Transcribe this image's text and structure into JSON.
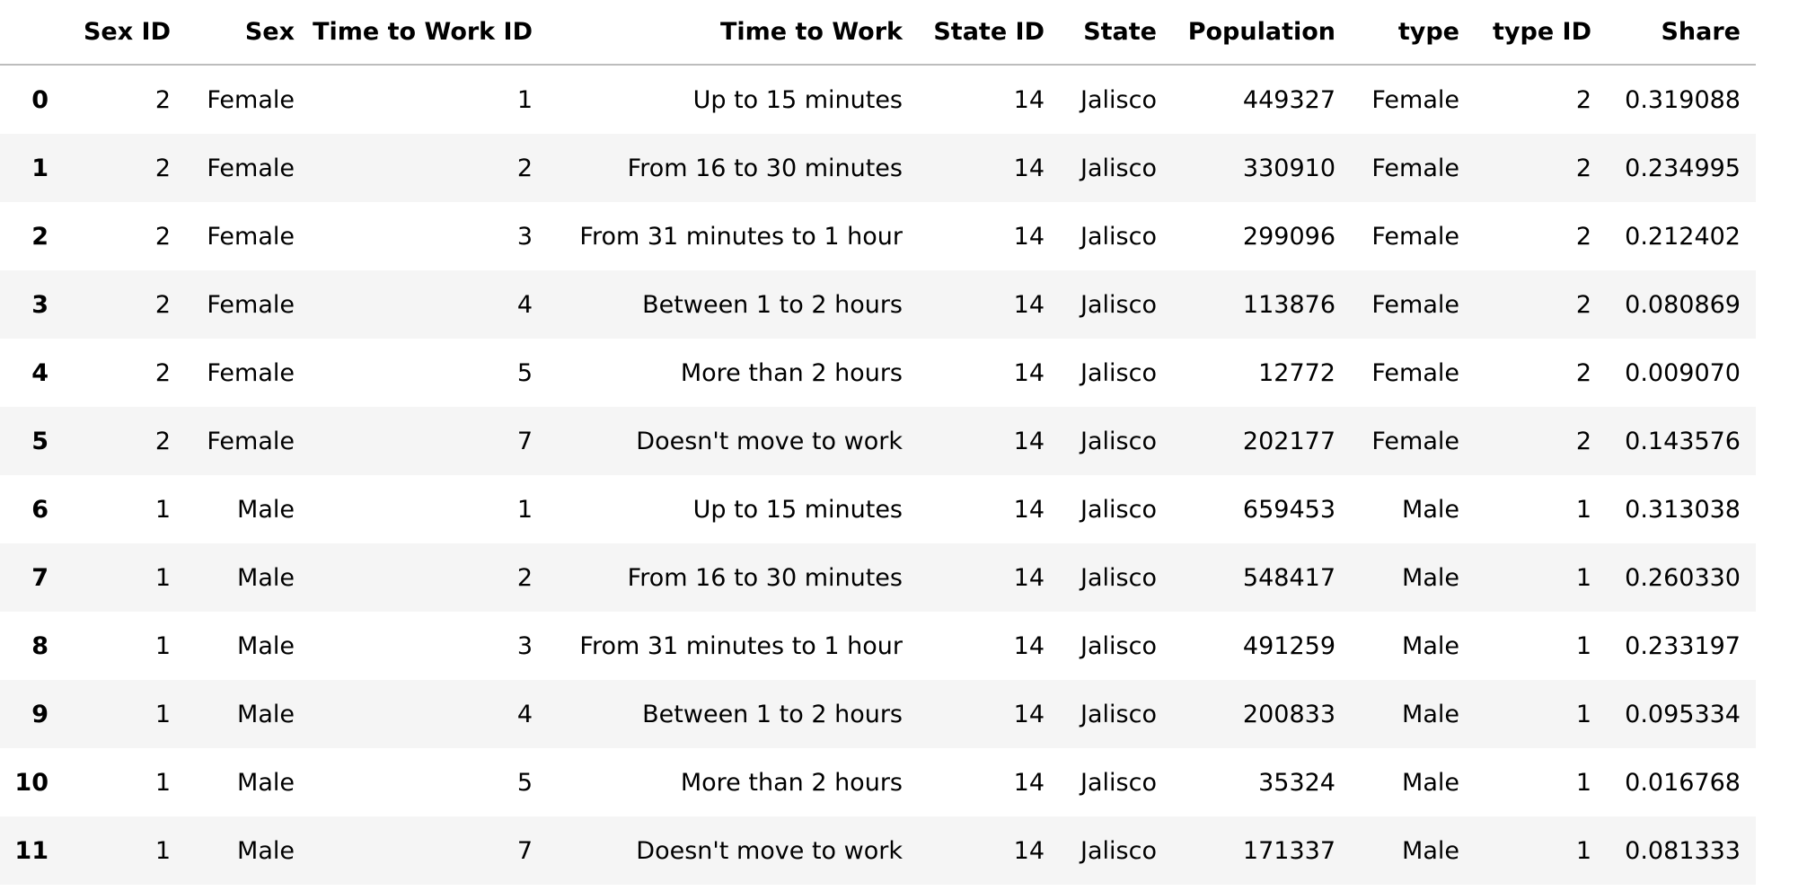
{
  "table": {
    "columns": [
      "",
      "Sex ID",
      "Sex",
      "Time to Work ID",
      "Time to Work",
      "State ID",
      "State",
      "Population",
      "type",
      "type ID",
      "Share"
    ],
    "rows": [
      [
        "0",
        "2",
        "Female",
        "1",
        "Up to 15 minutes",
        "14",
        "Jalisco",
        "449327",
        "Female",
        "2",
        "0.319088"
      ],
      [
        "1",
        "2",
        "Female",
        "2",
        "From 16 to 30 minutes",
        "14",
        "Jalisco",
        "330910",
        "Female",
        "2",
        "0.234995"
      ],
      [
        "2",
        "2",
        "Female",
        "3",
        "From 31 minutes to 1 hour",
        "14",
        "Jalisco",
        "299096",
        "Female",
        "2",
        "0.212402"
      ],
      [
        "3",
        "2",
        "Female",
        "4",
        "Between 1 to 2 hours",
        "14",
        "Jalisco",
        "113876",
        "Female",
        "2",
        "0.080869"
      ],
      [
        "4",
        "2",
        "Female",
        "5",
        "More than 2 hours",
        "14",
        "Jalisco",
        "12772",
        "Female",
        "2",
        "0.009070"
      ],
      [
        "5",
        "2",
        "Female",
        "7",
        "Doesn't move to work",
        "14",
        "Jalisco",
        "202177",
        "Female",
        "2",
        "0.143576"
      ],
      [
        "6",
        "1",
        "Male",
        "1",
        "Up to 15 minutes",
        "14",
        "Jalisco",
        "659453",
        "Male",
        "1",
        "0.313038"
      ],
      [
        "7",
        "1",
        "Male",
        "2",
        "From 16 to 30 minutes",
        "14",
        "Jalisco",
        "548417",
        "Male",
        "1",
        "0.260330"
      ],
      [
        "8",
        "1",
        "Male",
        "3",
        "From 31 minutes to 1 hour",
        "14",
        "Jalisco",
        "491259",
        "Male",
        "1",
        "0.233197"
      ],
      [
        "9",
        "1",
        "Male",
        "4",
        "Between 1 to 2 hours",
        "14",
        "Jalisco",
        "200833",
        "Male",
        "1",
        "0.095334"
      ],
      [
        "10",
        "1",
        "Male",
        "5",
        "More than 2 hours",
        "14",
        "Jalisco",
        "35324",
        "Male",
        "1",
        "0.016768"
      ],
      [
        "11",
        "1",
        "Male",
        "7",
        "Doesn't move to work",
        "14",
        "Jalisco",
        "171337",
        "Male",
        "1",
        "0.081333"
      ]
    ]
  }
}
